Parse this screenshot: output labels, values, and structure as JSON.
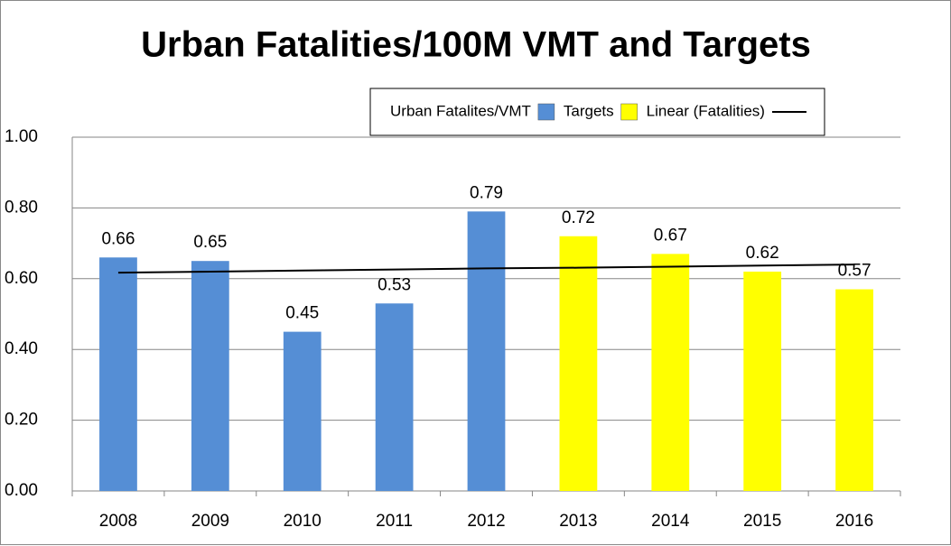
{
  "chart_data": {
    "type": "bar",
    "title": "Urban Fatalities/100M VMT and Targets",
    "categories": [
      "2008",
      "2009",
      "2010",
      "2011",
      "2012",
      "2013",
      "2014",
      "2015",
      "2016"
    ],
    "series": [
      {
        "name": "Urban Fatalites/VMT",
        "color": "#558ed5",
        "values": [
          0.66,
          0.65,
          0.45,
          0.53,
          0.79,
          null,
          null,
          null,
          null
        ]
      },
      {
        "name": "Targets",
        "color": "#ffff00",
        "values": [
          null,
          null,
          null,
          null,
          null,
          0.72,
          0.67,
          0.62,
          0.57
        ]
      },
      {
        "name": "Linear (Fatalities)",
        "type": "line",
        "color": "#000000",
        "values": [
          0.617,
          0.62,
          0.623,
          0.626,
          0.629,
          0.631,
          0.634,
          0.637,
          0.64
        ]
      }
    ],
    "ylim": [
      0,
      1
    ],
    "yticks": [
      {
        "value": 0,
        "label": "0.00"
      },
      {
        "value": 0.2,
        "label": "0.20"
      },
      {
        "value": 0.4,
        "label": "0.40"
      },
      {
        "value": 0.6,
        "label": "0.60"
      },
      {
        "value": 0.8,
        "label": "0.80"
      },
      {
        "value": 1,
        "label": "1.00"
      }
    ],
    "grid": true,
    "legend": "top-right",
    "data_labels": true
  }
}
